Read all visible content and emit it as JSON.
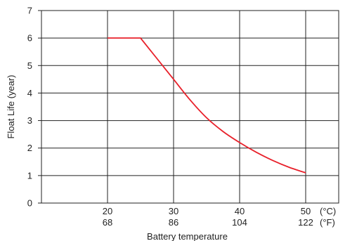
{
  "chart_data": {
    "type": "line",
    "title": "",
    "xlabel": "Battery temperature",
    "ylabel": "Float Life (year)",
    "xlim": [
      10,
      55
    ],
    "ylim": [
      0,
      7
    ],
    "grid": true,
    "x_ticks_c": [
      20,
      30,
      40,
      50
    ],
    "x_ticks_f": [
      68,
      86,
      104,
      122
    ],
    "unit_c": "(°C)",
    "unit_f": "(°F)",
    "y_ticks": [
      0,
      1,
      2,
      3,
      4,
      5,
      6,
      7
    ],
    "series": [
      {
        "color": "#e8202a",
        "x": [
          20,
          25,
          27.5,
          30,
          32.5,
          35,
          37.5,
          40,
          42.5,
          45,
          47.5,
          50
        ],
        "y": [
          6.0,
          6.0,
          5.25,
          4.5,
          3.75,
          3.1,
          2.6,
          2.2,
          1.85,
          1.55,
          1.3,
          1.1
        ]
      }
    ]
  }
}
